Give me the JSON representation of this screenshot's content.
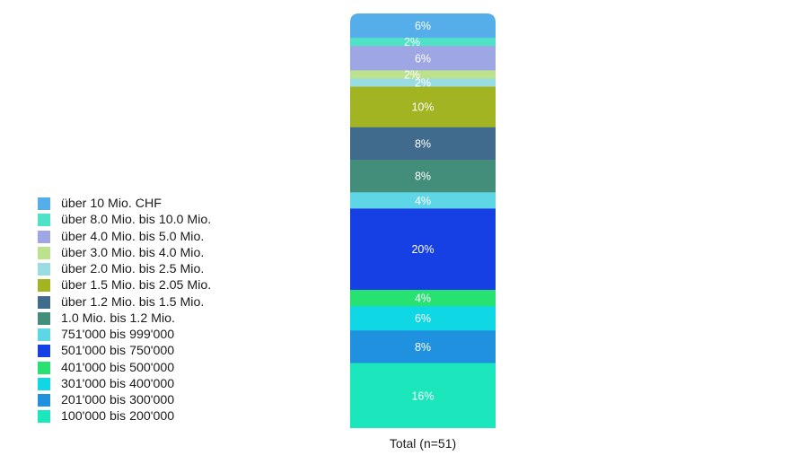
{
  "chart_data": {
    "type": "bar",
    "stacked": true,
    "unit": "%",
    "categories": [
      "Total (n=51)"
    ],
    "series": [
      {
        "name": "über 10 Mio. CHF",
        "values": [
          6
        ],
        "label": "6%",
        "color": "#55aeea"
      },
      {
        "name": "über 8.0 Mio. bis 10.0 Mio.",
        "values": [
          2
        ],
        "label": "2%",
        "color": "#4fe2c6"
      },
      {
        "name": "über 4.0 Mio. bis 5.0 Mio.",
        "values": [
          6
        ],
        "label": "6%",
        "color": "#9ea7e4"
      },
      {
        "name": "über 3.0 Mio. bis 4.0 Mio.",
        "values": [
          2
        ],
        "label": "2%",
        "color": "#bde28e"
      },
      {
        "name": "über 2.0 Mio. bis 2.5 Mio.",
        "values": [
          2
        ],
        "label": "2%",
        "color": "#99dde3"
      },
      {
        "name": "über 1.5 Mio. bis 2.05 Mio.",
        "values": [
          10
        ],
        "label": "10%",
        "color": "#a2b422"
      },
      {
        "name": "über 1.2 Mio. bis 1.5 Mio.",
        "values": [
          8
        ],
        "label": "8%",
        "color": "#416b8d"
      },
      {
        "name": "1.0 Mio. bis 1.2 Mio.",
        "values": [
          8
        ],
        "label": "8%",
        "color": "#438d7b"
      },
      {
        "name": "751'000 bis 999'000",
        "values": [
          4
        ],
        "label": "4%",
        "color": "#5fd6e6"
      },
      {
        "name": "501'000 bis 750'000",
        "values": [
          20
        ],
        "label": "20%",
        "color": "#1640e4"
      },
      {
        "name": "401'000 bis 500'000",
        "values": [
          4
        ],
        "label": "4%",
        "color": "#27e270"
      },
      {
        "name": "301'000 bis 400'000",
        "values": [
          6
        ],
        "label": "6%",
        "color": "#0fd7e4"
      },
      {
        "name": "201'000 bis 300'000",
        "values": [
          8
        ],
        "label": "8%",
        "color": "#1f91df"
      },
      {
        "name": "100'000 bis 200'000",
        "values": [
          16
        ],
        "label": "16%",
        "color": "#1ce6bb"
      }
    ],
    "legend_position": "left",
    "grid": false,
    "title": "",
    "xlabel": "",
    "ylabel": ""
  }
}
